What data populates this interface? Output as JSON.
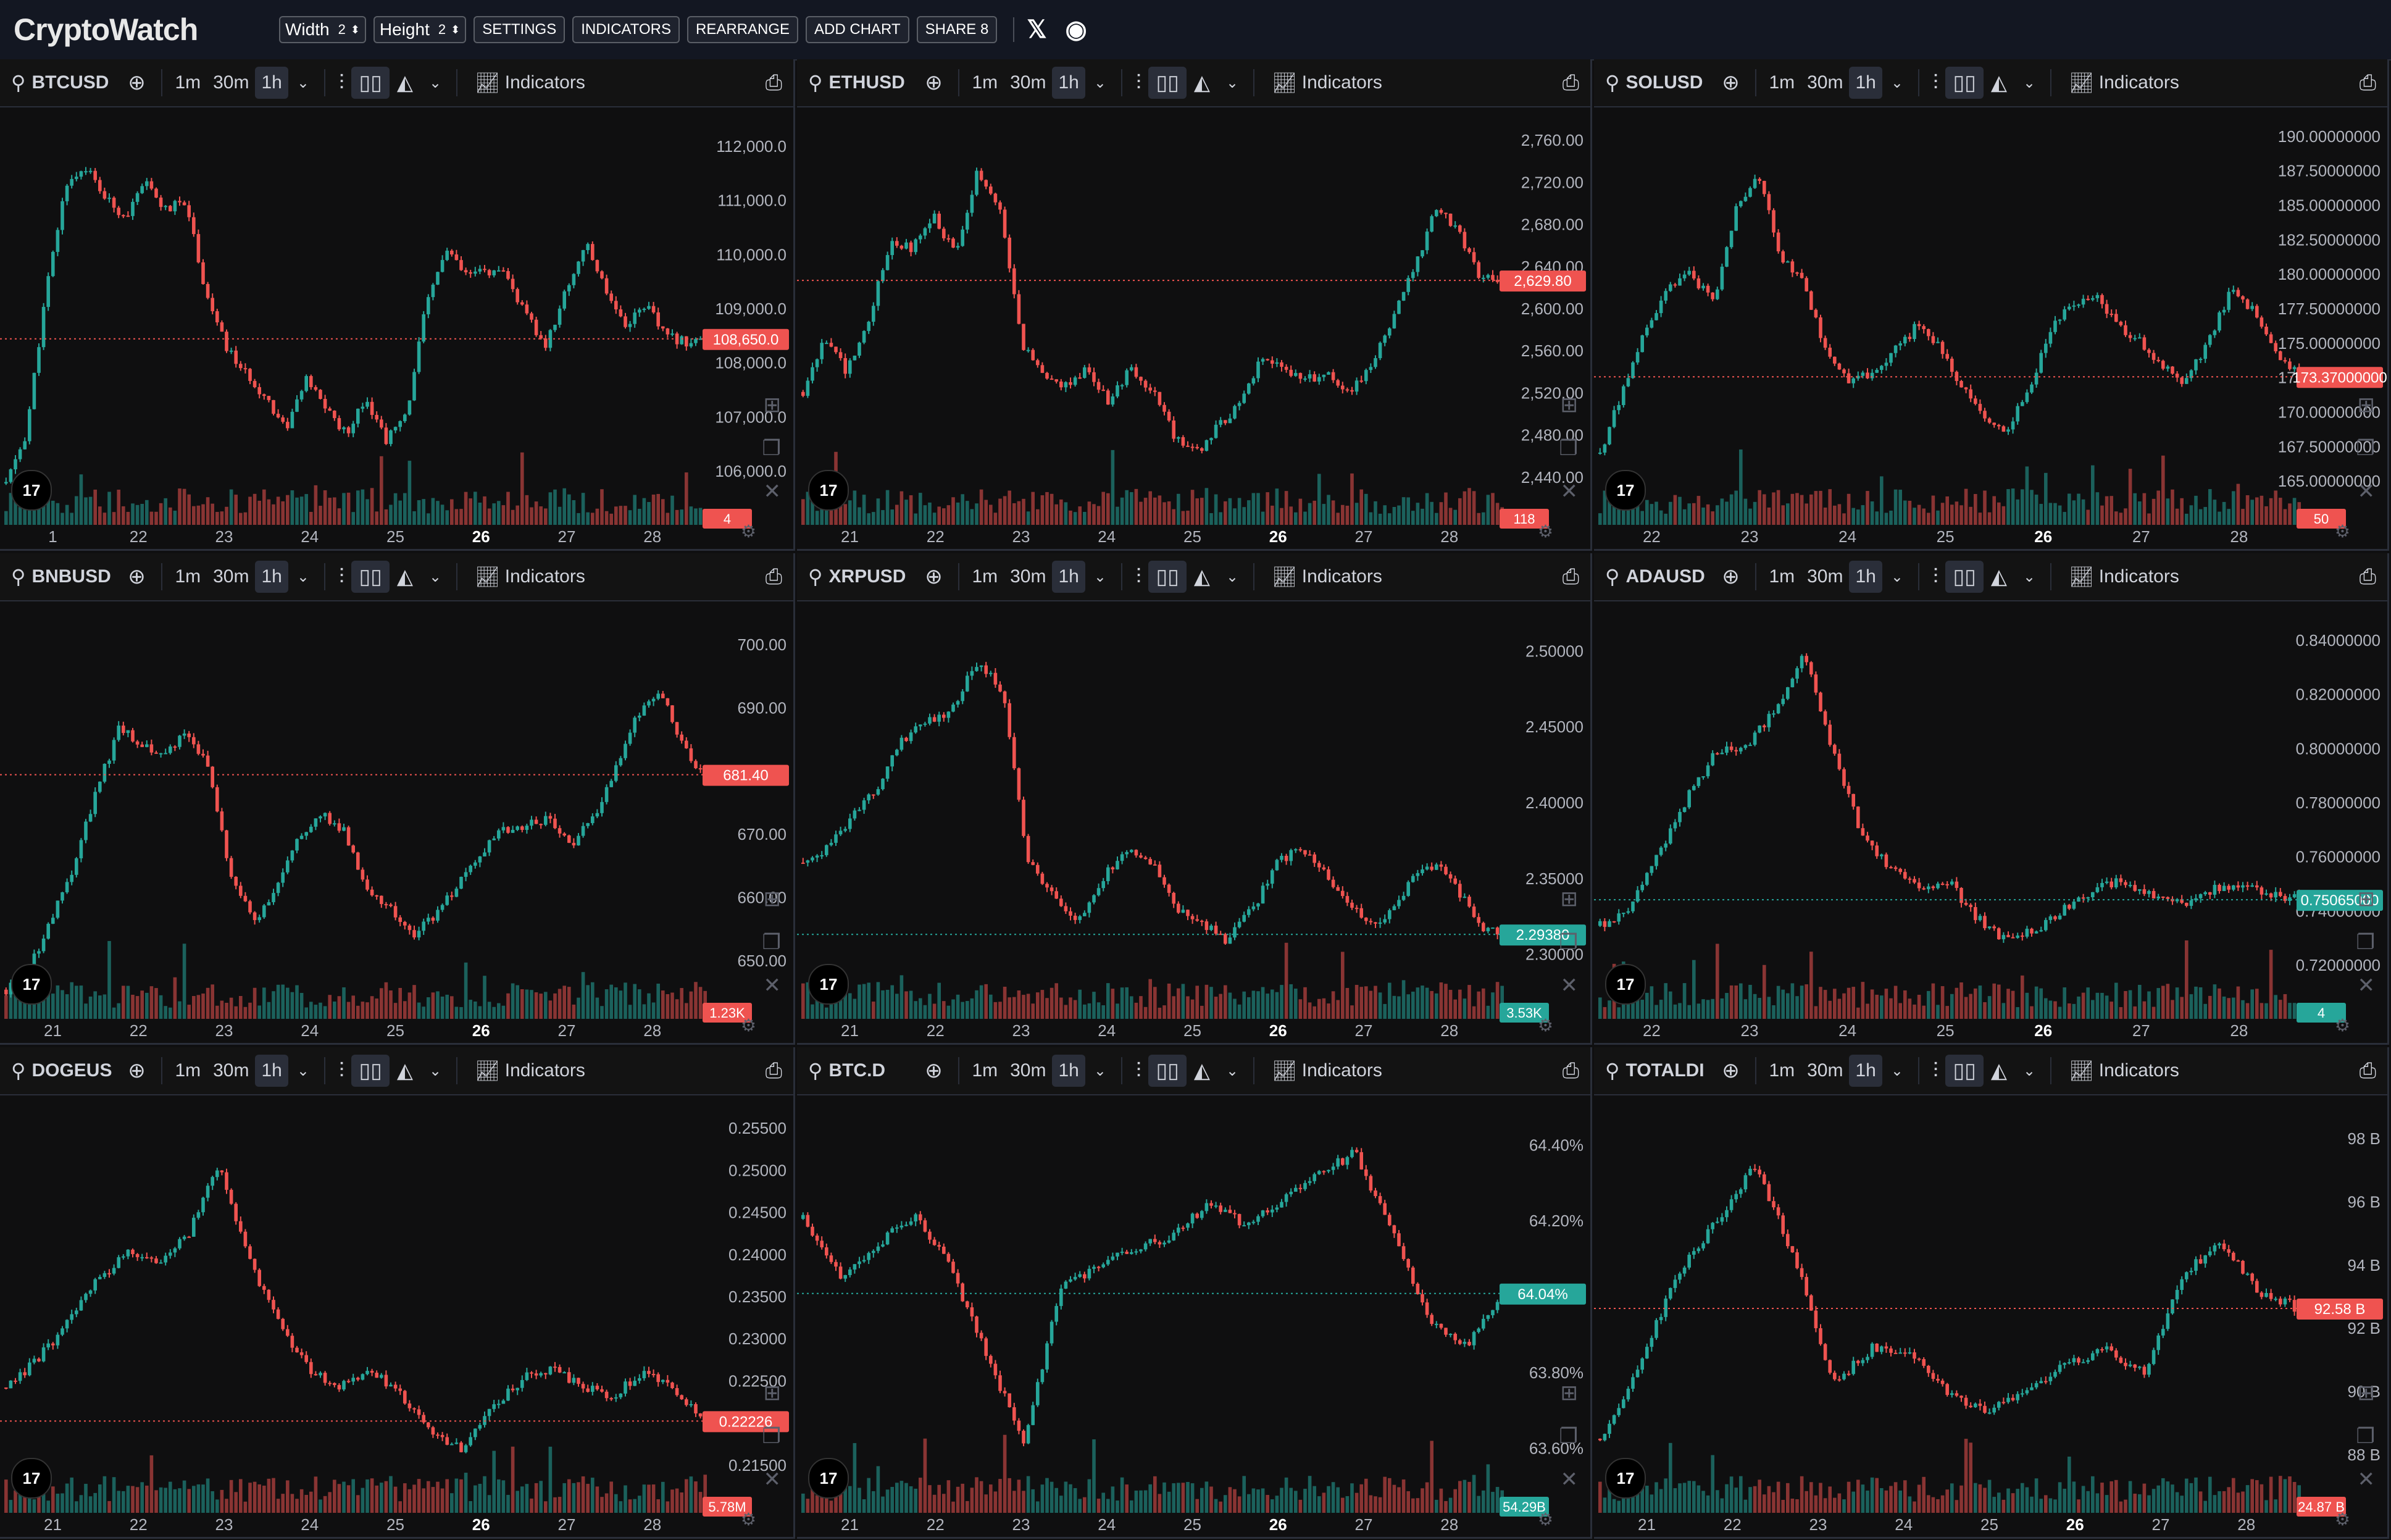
{
  "app": {
    "logo": "CryptoWatch",
    "width_label": "Width",
    "width_value": "2",
    "height_label": "Height",
    "height_value": "2",
    "buttons": [
      "SETTINGS",
      "INDICATORS",
      "REARRANGE",
      "ADD CHART",
      "SHARE 8"
    ],
    "social": [
      "𝕏",
      "Discord"
    ]
  },
  "toolbar": {
    "timeframes": [
      "1m",
      "30m",
      "1h"
    ],
    "active_timeframe": "1h",
    "indicators_label": "Indicators"
  },
  "colors": {
    "up": "#26a69a",
    "down": "#ef5350",
    "bg": "#0f0f10",
    "grid": "#1c1e24",
    "axis_text": "#b2b5be"
  },
  "panels": [
    {
      "symbol": "BTCUSD",
      "y_ticks": [
        "112,000.0",
        "111,000.0",
        "110,000.0",
        "109,000.0",
        "108,000.0",
        "107,000.0",
        "106,000.0"
      ],
      "ylim": [
        105400,
        112800
      ],
      "price_label": "108,650.0",
      "price": 108650,
      "price_color": "down",
      "vol_label": "4",
      "vol_color": "down",
      "x_ticks": [
        "1",
        "22",
        "23",
        "24",
        "25",
        "26",
        "27",
        "28"
      ],
      "series": [
        106000,
        106900,
        109500,
        111500,
        111800,
        111200,
        110900,
        111500,
        111000,
        111200,
        109500,
        108500,
        108000,
        107600,
        107000,
        107900,
        107400,
        106900,
        107600,
        106800,
        107200,
        109200,
        110300,
        109800,
        109900,
        109800,
        109100,
        108500,
        109500,
        110400,
        109600,
        108900,
        109300,
        108700,
        108600,
        108650
      ]
    },
    {
      "symbol": "ETHUSD",
      "y_ticks": [
        "2,760.00",
        "2,720.00",
        "2,680.00",
        "2,640.00",
        "2,600.00",
        "2,560.00",
        "2,520.00",
        "2,480.00",
        "2,440.00"
      ],
      "ylim": [
        2440,
        2765
      ],
      "price_label": "2,629.80",
      "price": 2629.8,
      "price_color": "down",
      "vol_label": "118",
      "vol_color": "down",
      "x_ticks": [
        "21",
        "22",
        "23",
        "24",
        "25",
        "26",
        "27",
        "28"
      ],
      "series": [
        2540,
        2585,
        2555,
        2600,
        2660,
        2655,
        2680,
        2650,
        2718,
        2690,
        2578,
        2556,
        2545,
        2560,
        2532,
        2560,
        2540,
        2505,
        2490,
        2512,
        2530,
        2570,
        2560,
        2550,
        2556,
        2540,
        2560,
        2600,
        2640,
        2690,
        2670,
        2632,
        2630
      ]
    },
    {
      "symbol": "SOLUSD",
      "y_ticks": [
        "190.00000000",
        "187.50000000",
        "185.00000000",
        "182.50000000",
        "180.00000000",
        "177.50000000",
        "175.00000000",
        "172.50000000",
        "170.00000000",
        "167.50000000",
        "165.00000000"
      ],
      "ylim": [
        164500,
        190200
      ],
      "price_label": "173.37000000",
      "price": 173370,
      "price_color": "down",
      "vol_label": "50",
      "vol_color": "down",
      "x_ticks": [
        "22",
        "23",
        "24",
        "25",
        "26",
        "27",
        "28"
      ],
      "series": [
        168500,
        172500,
        176500,
        179000,
        180000,
        178000,
        184000,
        186500,
        181000,
        179500,
        175000,
        173000,
        173500,
        175000,
        176500,
        175500,
        172800,
        171000,
        170000,
        172500,
        176500,
        178000,
        178600,
        176500,
        175500,
        174000,
        173000,
        175800,
        178900,
        177500,
        175000,
        173370
      ]
    },
    {
      "symbol": "BNBUSD",
      "y_ticks": [
        "700.00",
        "690.00",
        "680.00",
        "670.00",
        "660.00",
        "650.00"
      ],
      "ylim": [
        647,
        706
      ],
      "price_label": "681.40",
      "price": 681.4,
      "price_color": "down",
      "vol_label": "1.23K",
      "vol_color": "down",
      "x_ticks": [
        "21",
        "22",
        "23",
        "24",
        "25",
        "26",
        "27",
        "28"
      ],
      "series": [
        650,
        653,
        660,
        668,
        679,
        688,
        686,
        684,
        688,
        682,
        666,
        660,
        665,
        672,
        676,
        673,
        664,
        662,
        658,
        661,
        665,
        670,
        673,
        674,
        675,
        671,
        675,
        682,
        690,
        694,
        686,
        681
      ]
    },
    {
      "symbol": "XRPUSD",
      "y_ticks": [
        "2.50000",
        "2.45000",
        "2.40000",
        "2.35000",
        "2.30000"
      ],
      "ylim": [
        2.245,
        2.505
      ],
      "price_label": "2.29380",
      "price": 2.2938,
      "price_color": "up",
      "vol_label": "3.53K",
      "vol_color": "up",
      "x_ticks": [
        "21",
        "22",
        "23",
        "24",
        "25",
        "26",
        "27",
        "28"
      ],
      "series": [
        2.34,
        2.35,
        2.37,
        2.39,
        2.42,
        2.43,
        2.44,
        2.47,
        2.45,
        2.34,
        2.32,
        2.3,
        2.33,
        2.35,
        2.34,
        2.31,
        2.3,
        2.29,
        2.31,
        2.34,
        2.35,
        2.33,
        2.31,
        2.3,
        2.32,
        2.34,
        2.33,
        2.3,
        2.294
      ]
    },
    {
      "symbol": "ADAUSD",
      "y_ticks": [
        "0.84000000",
        "0.82000000",
        "0.80000000",
        "0.78000000",
        "0.76000000",
        "0.74000000",
        "0.72000000"
      ],
      "ylim": [
        0.714,
        0.848
      ],
      "price_label": "0.75065000",
      "price": 0.75065,
      "price_color": "up",
      "vol_label": "4",
      "vol_color": "up",
      "x_ticks": [
        "22",
        "23",
        "24",
        "25",
        "26",
        "27",
        "28"
      ],
      "series": [
        0.742,
        0.748,
        0.765,
        0.785,
        0.8,
        0.802,
        0.813,
        0.832,
        0.8,
        0.772,
        0.76,
        0.755,
        0.756,
        0.744,
        0.737,
        0.741,
        0.748,
        0.754,
        0.757,
        0.752,
        0.749,
        0.754,
        0.756,
        0.752,
        0.7507
      ]
    },
    {
      "symbol": "DOGEUS",
      "y_ticks": [
        "0.25500",
        "0.25000",
        "0.24500",
        "0.24000",
        "0.23500",
        "0.23000",
        "0.22500",
        "0.22000",
        "0.21500"
      ],
      "ylim": [
        0.213,
        0.258
      ],
      "price_label": "0.22226",
      "price": 0.22226,
      "price_color": "down",
      "vol_label": "5.78M",
      "vol_color": "down",
      "x_ticks": [
        "21",
        "22",
        "23",
        "24",
        "25",
        "26",
        "27",
        "28"
      ],
      "series": [
        0.226,
        0.229,
        0.233,
        0.238,
        0.241,
        0.24,
        0.243,
        0.251,
        0.24,
        0.233,
        0.228,
        0.226,
        0.228,
        0.225,
        0.221,
        0.219,
        0.224,
        0.227,
        0.228,
        0.226,
        0.225,
        0.228,
        0.226,
        0.222
      ]
    },
    {
      "symbol": "BTC.D",
      "y_ticks": [
        "64.40%",
        "64.20%",
        "64.00%",
        "63.80%",
        "63.60%"
      ],
      "ylim": [
        63.56,
        64.48
      ],
      "price_label": "64.04%",
      "price": 64.04,
      "price_color": "up",
      "vol_label": "54.29B",
      "vol_color": "up",
      "x_ticks": [
        "21",
        "22",
        "23",
        "24",
        "25",
        "26",
        "27",
        "28"
      ],
      "series": [
        64.21,
        64.08,
        64.15,
        64.22,
        64.1,
        63.9,
        63.7,
        64.05,
        64.1,
        64.14,
        64.17,
        64.24,
        64.2,
        64.25,
        64.31,
        64.36,
        64.18,
        63.98,
        63.92,
        64.04
      ]
    },
    {
      "symbol": "TOTALDI",
      "y_ticks": [
        "98 B",
        "96 B",
        "94 B",
        "92 B",
        "90 B",
        "88 B"
      ],
      "ylim": [
        87200,
        98300
      ],
      "price_label": "92.58 B",
      "price": 92580,
      "price_color": "down",
      "vol_label": "24.87 B",
      "vol_color": "down",
      "x_ticks": [
        "21",
        "22",
        "23",
        "24",
        "25",
        "26",
        "27",
        "28"
      ],
      "series": [
        89000,
        91000,
        93500,
        95000,
        96500,
        94000,
        90500,
        91500,
        91400,
        90200,
        89800,
        90400,
        91000,
        91500,
        90800,
        93500,
        94400,
        93000,
        92580
      ]
    }
  ]
}
